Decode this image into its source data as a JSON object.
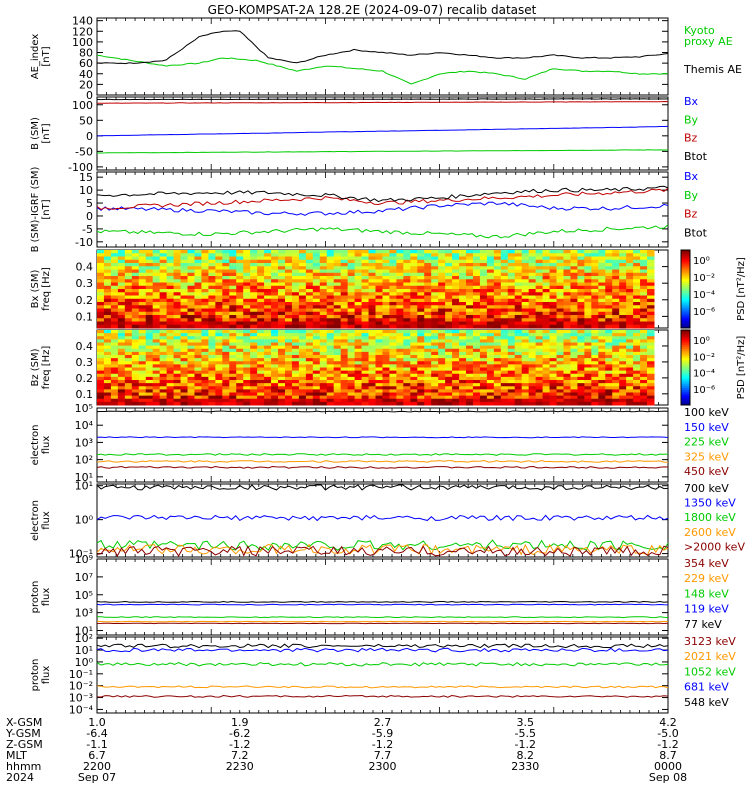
{
  "title": "GEO-KOMPSAT-2A 128.2E (2024-09-07) recalib dataset",
  "colors": {
    "black": "#000000",
    "red": "#c00000",
    "green": "#00cc00",
    "blue": "#0000ff",
    "orange": "#ff9900",
    "darkred": "#8b0000"
  },
  "chart_data": [
    {
      "type": "line",
      "id": "ae",
      "ylabel": "AE_index\n[nT]",
      "yticks": [
        "0",
        "20",
        "40",
        "60",
        "80",
        "100",
        "120",
        "140"
      ],
      "ylim": [
        0,
        145
      ],
      "series": [
        {
          "name": "Kyoto proxy AE",
          "label_lines": [
            "Kyoto",
            "proxy AE"
          ],
          "color": "#00cc00",
          "x": [
            0,
            0.06,
            0.12,
            0.18,
            0.22,
            0.28,
            0.35,
            0.4,
            0.45,
            0.5,
            0.55,
            0.6,
            0.65,
            0.7,
            0.75,
            0.8,
            0.85,
            0.9,
            0.95,
            1
          ],
          "y": [
            75,
            65,
            55,
            60,
            70,
            65,
            45,
            55,
            50,
            45,
            20,
            40,
            45,
            40,
            30,
            50,
            45,
            45,
            40,
            40
          ]
        },
        {
          "name": "Themis AE",
          "label_lines": [
            "Themis AE"
          ],
          "color": "#000000",
          "x": [
            0,
            0.06,
            0.12,
            0.18,
            0.22,
            0.25,
            0.3,
            0.35,
            0.4,
            0.45,
            0.5,
            0.55,
            0.6,
            0.65,
            0.7,
            0.75,
            0.8,
            0.85,
            0.9,
            0.95,
            1
          ],
          "y": [
            60,
            60,
            65,
            110,
            120,
            120,
            70,
            60,
            75,
            85,
            80,
            75,
            80,
            75,
            70,
            70,
            75,
            70,
            70,
            72,
            78
          ]
        }
      ]
    },
    {
      "type": "line",
      "id": "bsm",
      "ylabel": "B (SM)\n[nT]",
      "yticks": [
        "-100",
        "-50",
        "0",
        "50",
        "100"
      ],
      "ylim": [
        -110,
        125
      ],
      "series": [
        {
          "name": "Bx",
          "color": "#0000ff",
          "x": [
            0,
            1
          ],
          "y": [
            0,
            30
          ]
        },
        {
          "name": "By",
          "color": "#00cc00",
          "x": [
            0,
            1
          ],
          "y": [
            -55,
            -45
          ]
        },
        {
          "name": "Bz",
          "color": "#c00000",
          "x": [
            0,
            1
          ],
          "y": [
            105,
            110
          ]
        },
        {
          "name": "Btot",
          "color": "#000000",
          "x": [
            0,
            1
          ],
          "y": [
            117,
            119
          ]
        }
      ]
    },
    {
      "type": "line",
      "id": "bsmigrf",
      "ylabel": "B (SM)-IGRF (SM)\n[nT]",
      "yticks": [
        "-10",
        "-5",
        "0",
        "5",
        "10",
        "15"
      ],
      "ylim": [
        -12,
        17
      ],
      "series": [
        {
          "name": "Bx",
          "color": "#0000ff",
          "x": [
            0,
            0.2,
            0.3,
            0.4,
            0.5,
            0.6,
            0.7,
            0.8,
            0.9,
            1
          ],
          "y": [
            3,
            2,
            1,
            1,
            2,
            4,
            5,
            3,
            3,
            4
          ]
        },
        {
          "name": "By",
          "color": "#00cc00",
          "x": [
            0,
            0.2,
            0.3,
            0.4,
            0.5,
            0.6,
            0.7,
            0.8,
            0.9,
            1
          ],
          "y": [
            -6,
            -7,
            -6,
            -5,
            -6,
            -7,
            -8,
            -6,
            -5,
            -4
          ]
        },
        {
          "name": "Bz",
          "color": "#c00000",
          "x": [
            0,
            0.2,
            0.3,
            0.4,
            0.5,
            0.6,
            0.7,
            0.8,
            0.9,
            1
          ],
          "y": [
            3,
            5,
            6,
            7,
            5,
            6,
            7,
            8,
            9,
            10
          ]
        },
        {
          "name": "Btot",
          "color": "#000000",
          "x": [
            0,
            0.2,
            0.3,
            0.4,
            0.5,
            0.6,
            0.7,
            0.8,
            0.9,
            1
          ],
          "y": [
            8,
            9,
            9,
            8,
            6,
            7,
            9,
            10,
            10,
            11
          ]
        }
      ]
    },
    {
      "type": "heatmap",
      "id": "bx-spec",
      "ylabel": "Bx (SM)\nfreq [Hz]",
      "yticks": [
        "0.1",
        "0.2",
        "0.3",
        "0.4"
      ],
      "ylim": [
        0.03,
        0.5
      ],
      "colorbar_label": "PSD [nT²/Hz]",
      "colorbar_ticks": [
        "10⁰",
        "10⁻²",
        "10⁻⁴",
        "10⁻⁶"
      ]
    },
    {
      "type": "heatmap",
      "id": "bz-spec",
      "ylabel": "Bz (SM)\nfreq [Hz]",
      "yticks": [
        "0.1",
        "0.2",
        "0.3",
        "0.4"
      ],
      "ylim": [
        0.03,
        0.5
      ],
      "colorbar_label": "PSD [nT²/Hz]",
      "colorbar_ticks": [
        "10⁰",
        "10⁻²",
        "10⁻⁴",
        "10⁻⁶"
      ]
    },
    {
      "type": "line",
      "id": "e-low",
      "log": true,
      "ylabel": "electron\nflux",
      "yticks": [
        "10¹",
        "10²",
        "10³",
        "10⁴",
        "10⁵"
      ],
      "ylim_log": [
        0.7,
        5
      ],
      "series": [
        {
          "name": "100 keV",
          "color": "#000000",
          "level": 4.8
        },
        {
          "name": "150 keV",
          "color": "#0000ff",
          "level": 3.3
        },
        {
          "name": "225 keV",
          "color": "#00cc00",
          "level": 2.3
        },
        {
          "name": "325 keV",
          "color": "#ff9900",
          "level": 1.9
        },
        {
          "name": "450 keV",
          "color": "#8b0000",
          "level": 1.55
        }
      ]
    },
    {
      "type": "line",
      "id": "e-high",
      "log": true,
      "ylabel": "electron\nflux",
      "yticks": [
        "10⁻¹",
        "10⁰",
        "10¹"
      ],
      "ylim_log": [
        -1.1,
        1.05
      ],
      "series": [
        {
          "name": "700 keV",
          "color": "#000000",
          "level": 0.95
        },
        {
          "name": "1350 keV",
          "color": "#0000ff",
          "level": 0.05
        },
        {
          "name": "1800 keV",
          "color": "#00cc00",
          "level": -0.75
        },
        {
          "name": "2600 keV",
          "color": "#ff9900",
          "level": -0.88
        },
        {
          "name": ">2000 keV",
          "color": "#8b0000",
          "level": -0.93
        }
      ]
    },
    {
      "type": "line",
      "id": "p-low",
      "log": true,
      "ylabel": "proton\nflux",
      "yticks": [
        "10¹",
        "10³",
        "10⁵",
        "10⁷",
        "10⁹"
      ],
      "ylim_log": [
        0.5,
        9
      ],
      "series": [
        {
          "name": "354 keV",
          "color": "#8b0000",
          "level": 1.8
        },
        {
          "name": "229 keV",
          "color": "#ff9900",
          "level": 2.0
        },
        {
          "name": "148 keV",
          "color": "#00cc00",
          "level": 2.5
        },
        {
          "name": "119 keV",
          "color": "#0000ff",
          "level": 3.9
        },
        {
          "name": "77 keV",
          "color": "#000000",
          "level": 4.2
        }
      ]
    },
    {
      "type": "line",
      "id": "p-high",
      "log": true,
      "ylabel": "proton\nflux",
      "yticks": [
        "10⁻⁴",
        "10⁻³",
        "10⁻²",
        "10⁻¹",
        "10⁰",
        "10¹",
        "10²"
      ],
      "ylim_log": [
        -4.3,
        2.1
      ],
      "series": [
        {
          "name": "3123 keV",
          "color": "#8b0000",
          "level": -2.9
        },
        {
          "name": "2021 keV",
          "color": "#ff9900",
          "level": -2.1
        },
        {
          "name": "1052 keV",
          "color": "#00cc00",
          "level": -0.2
        },
        {
          "name": "681 keV",
          "color": "#0000ff",
          "level": 1.0
        },
        {
          "name": "548 keV",
          "color": "#000000",
          "level": 1.35
        }
      ]
    }
  ],
  "xaxis": {
    "row_labels": [
      "X-GSM",
      "Y-GSM",
      "Z-GSM",
      "MLT",
      "hhmm",
      "2024"
    ],
    "ticks": [
      {
        "pos": 0,
        "vals": [
          "1.0",
          "-6.4",
          "-1.1",
          "6.7",
          "2200",
          "Sep 07"
        ]
      },
      {
        "pos": 0.25,
        "vals": [
          "1.9",
          "-6.2",
          "-1.2",
          "7.2",
          "2230",
          ""
        ]
      },
      {
        "pos": 0.5,
        "vals": [
          "2.7",
          "-5.9",
          "-1.2",
          "7.7",
          "2300",
          ""
        ]
      },
      {
        "pos": 0.75,
        "vals": [
          "3.5",
          "-5.5",
          "-1.2",
          "8.2",
          "2330",
          ""
        ]
      },
      {
        "pos": 1,
        "vals": [
          "4.2",
          "-5.0",
          "-1.2",
          "8.7",
          "0000",
          "Sep 08"
        ]
      }
    ]
  }
}
